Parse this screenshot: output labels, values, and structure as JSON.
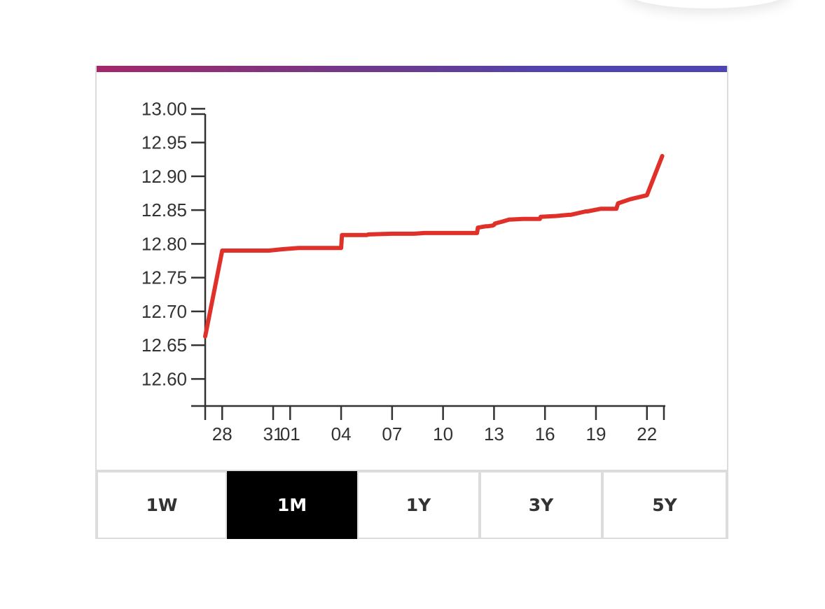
{
  "colors": {
    "accent_start": "#a3286a",
    "accent_end": "#4e45b0",
    "line": "#e0302a",
    "axis": "#333333",
    "active_button_bg": "#000000"
  },
  "range_selector": {
    "buttons": [
      {
        "label": "1W",
        "active": false
      },
      {
        "label": "1M",
        "active": true
      },
      {
        "label": "1Y",
        "active": false
      },
      {
        "label": "3Y",
        "active": false
      },
      {
        "label": "5Y",
        "active": false
      }
    ]
  },
  "chart_data": {
    "type": "line",
    "title": "",
    "xlabel": "",
    "ylabel": "",
    "grid": false,
    "ylim": [
      12.56,
      12.99
    ],
    "xlim": [
      0,
      27
    ],
    "y_ticks": [
      12.6,
      12.65,
      12.7,
      12.75,
      12.8,
      12.85,
      12.9,
      12.95,
      13.0
    ],
    "y_tick_labels": [
      "12.60",
      "12.65",
      "12.70",
      "12.75",
      "12.80",
      "12.85",
      "12.90",
      "12.95",
      "13.00"
    ],
    "x_ticks": [
      1,
      4,
      5,
      8,
      11,
      14,
      17,
      20,
      23,
      26
    ],
    "x_tick_labels": [
      "28",
      "31",
      "01",
      "04",
      "07",
      "10",
      "13",
      "16",
      "19",
      "22"
    ],
    "series": [
      {
        "x": [
          0.0,
          1.0,
          1.7,
          2.6,
          3.7,
          3.75,
          4.5,
          5.5,
          6.5,
          7.0,
          8.0,
          8.05,
          8.8,
          9.5,
          9.6,
          11.0,
          11.5,
          12.0,
          12.3,
          12.9,
          14.4,
          15.5,
          16.0,
          16.05,
          16.5,
          16.6,
          16.9,
          17.0,
          17.05,
          17.5,
          17.9,
          18.0,
          18.7,
          19.0,
          19.7,
          19.75,
          20.5,
          20.55,
          21.4,
          21.5,
          22.4,
          22.5,
          23.3,
          23.35,
          24.2,
          24.3,
          25.0,
          26.0,
          26.9
        ],
        "y": [
          12.663,
          12.79,
          12.79,
          12.79,
          12.79,
          12.79,
          12.792,
          12.794,
          12.794,
          12.794,
          12.794,
          12.813,
          12.813,
          12.813,
          12.814,
          12.815,
          12.815,
          12.815,
          12.815,
          12.816,
          12.816,
          12.816,
          12.816,
          12.824,
          12.826,
          12.826,
          12.827,
          12.828,
          12.83,
          12.833,
          12.836,
          12.836,
          12.837,
          12.837,
          12.837,
          12.84,
          12.841,
          12.841,
          12.843,
          12.843,
          12.848,
          12.848,
          12.852,
          12.852,
          12.852,
          12.86,
          12.866,
          12.872,
          12.93
        ]
      }
    ]
  }
}
